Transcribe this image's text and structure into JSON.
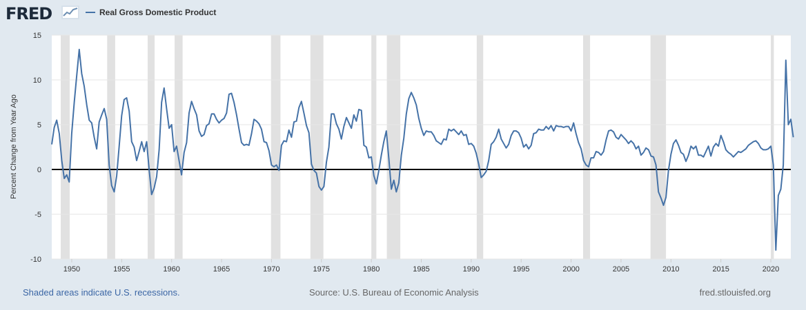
{
  "header": {
    "logo_text": "FRED",
    "logo_icon": "line-chart-icon",
    "legend_label": "Real Gross Domestic Product",
    "legend_color": "#4572a7"
  },
  "footer": {
    "left": "Shaded areas indicate U.S. recessions.",
    "center": "Source: U.S. Bureau of Economic Analysis",
    "right": "fred.stlouisfed.org"
  },
  "chart_data": {
    "type": "line",
    "ylabel": "Percent Change from Year Ago",
    "xlim": [
      1948.0,
      2022.0
    ],
    "ylim": [
      -10,
      15
    ],
    "yticks": [
      15,
      10,
      5,
      0,
      -5,
      -10
    ],
    "xticks": [
      1950,
      1955,
      1960,
      1965,
      1970,
      1975,
      1980,
      1985,
      1990,
      1995,
      2000,
      2005,
      2010,
      2015,
      2020
    ],
    "grid": true,
    "legend_position": "top-left",
    "recession_color": "#e1e1e1",
    "line_color": "#4572a7",
    "recessions": [
      [
        1948.9,
        1949.8
      ],
      [
        1953.55,
        1954.35
      ],
      [
        1957.6,
        1958.3
      ],
      [
        1960.3,
        1961.1
      ],
      [
        1969.95,
        1970.9
      ],
      [
        1973.9,
        1975.2
      ],
      [
        1980.0,
        1980.5
      ],
      [
        1981.55,
        1982.9
      ],
      [
        1990.55,
        1991.2
      ],
      [
        2001.2,
        2001.9
      ],
      [
        2007.95,
        2009.5
      ],
      [
        2020.0,
        2020.3
      ]
    ],
    "series": [
      {
        "points": [
          [
            1948.0,
            2.8
          ],
          [
            1948.25,
            4.7
          ],
          [
            1948.5,
            5.5
          ],
          [
            1948.75,
            4.0
          ],
          [
            1949.0,
            1.0
          ],
          [
            1949.25,
            -1.0
          ],
          [
            1949.5,
            -0.6
          ],
          [
            1949.75,
            -1.4
          ],
          [
            1950.0,
            4.0
          ],
          [
            1950.25,
            7.5
          ],
          [
            1950.5,
            10.5
          ],
          [
            1950.75,
            13.4
          ],
          [
            1951.0,
            10.7
          ],
          [
            1951.25,
            9.3
          ],
          [
            1951.5,
            7.2
          ],
          [
            1951.75,
            5.5
          ],
          [
            1952.0,
            5.2
          ],
          [
            1952.25,
            3.6
          ],
          [
            1952.5,
            2.3
          ],
          [
            1952.75,
            5.3
          ],
          [
            1953.0,
            6.1
          ],
          [
            1953.25,
            6.8
          ],
          [
            1953.5,
            5.6
          ],
          [
            1953.75,
            0.5
          ],
          [
            1954.0,
            -1.8
          ],
          [
            1954.25,
            -2.5
          ],
          [
            1954.5,
            -0.7
          ],
          [
            1954.75,
            2.6
          ],
          [
            1955.0,
            6.0
          ],
          [
            1955.25,
            7.8
          ],
          [
            1955.5,
            8.0
          ],
          [
            1955.75,
            6.5
          ],
          [
            1956.0,
            3.1
          ],
          [
            1956.25,
            2.5
          ],
          [
            1956.5,
            1.0
          ],
          [
            1956.75,
            2.0
          ],
          [
            1957.0,
            3.1
          ],
          [
            1957.25,
            2.0
          ],
          [
            1957.5,
            3.1
          ],
          [
            1957.75,
            0.0
          ],
          [
            1958.0,
            -2.8
          ],
          [
            1958.25,
            -2.1
          ],
          [
            1958.5,
            -0.8
          ],
          [
            1958.75,
            2.2
          ],
          [
            1959.0,
            7.5
          ],
          [
            1959.25,
            9.1
          ],
          [
            1959.5,
            6.8
          ],
          [
            1959.75,
            4.6
          ],
          [
            1960.0,
            5.0
          ],
          [
            1960.25,
            2.0
          ],
          [
            1960.5,
            2.6
          ],
          [
            1960.75,
            1.0
          ],
          [
            1961.0,
            -0.6
          ],
          [
            1961.25,
            1.9
          ],
          [
            1961.5,
            3.0
          ],
          [
            1961.75,
            6.3
          ],
          [
            1962.0,
            7.6
          ],
          [
            1962.25,
            6.8
          ],
          [
            1962.5,
            6.1
          ],
          [
            1962.75,
            4.3
          ],
          [
            1963.0,
            3.7
          ],
          [
            1963.25,
            3.9
          ],
          [
            1963.5,
            4.9
          ],
          [
            1963.75,
            5.1
          ],
          [
            1964.0,
            6.2
          ],
          [
            1964.25,
            6.2
          ],
          [
            1964.5,
            5.6
          ],
          [
            1964.75,
            5.2
          ],
          [
            1965.0,
            5.5
          ],
          [
            1965.25,
            5.7
          ],
          [
            1965.5,
            6.3
          ],
          [
            1965.75,
            8.4
          ],
          [
            1966.0,
            8.5
          ],
          [
            1966.25,
            7.5
          ],
          [
            1966.5,
            6.1
          ],
          [
            1966.75,
            4.5
          ],
          [
            1967.0,
            3.0
          ],
          [
            1967.25,
            2.7
          ],
          [
            1967.5,
            2.8
          ],
          [
            1967.75,
            2.7
          ],
          [
            1968.0,
            4.0
          ],
          [
            1968.25,
            5.6
          ],
          [
            1968.5,
            5.4
          ],
          [
            1968.75,
            5.1
          ],
          [
            1969.0,
            4.5
          ],
          [
            1969.25,
            3.1
          ],
          [
            1969.5,
            3.0
          ],
          [
            1969.75,
            2.1
          ],
          [
            1970.0,
            0.5
          ],
          [
            1970.25,
            0.3
          ],
          [
            1970.5,
            0.5
          ],
          [
            1970.75,
            -0.1
          ],
          [
            1971.0,
            2.7
          ],
          [
            1971.25,
            3.2
          ],
          [
            1971.5,
            3.1
          ],
          [
            1971.75,
            4.4
          ],
          [
            1972.0,
            3.6
          ],
          [
            1972.25,
            5.3
          ],
          [
            1972.5,
            5.4
          ],
          [
            1972.75,
            6.9
          ],
          [
            1973.0,
            7.6
          ],
          [
            1973.25,
            6.3
          ],
          [
            1973.5,
            4.9
          ],
          [
            1973.75,
            4.1
          ],
          [
            1974.0,
            0.6
          ],
          [
            1974.25,
            -0.1
          ],
          [
            1974.5,
            -0.4
          ],
          [
            1974.75,
            -1.9
          ],
          [
            1975.0,
            -2.3
          ],
          [
            1975.25,
            -1.9
          ],
          [
            1975.5,
            0.8
          ],
          [
            1975.75,
            2.5
          ],
          [
            1976.0,
            6.2
          ],
          [
            1976.25,
            6.2
          ],
          [
            1976.5,
            5.1
          ],
          [
            1976.75,
            4.5
          ],
          [
            1977.0,
            3.4
          ],
          [
            1977.25,
            4.8
          ],
          [
            1977.5,
            5.8
          ],
          [
            1977.75,
            5.2
          ],
          [
            1978.0,
            4.6
          ],
          [
            1978.25,
            6.1
          ],
          [
            1978.5,
            5.4
          ],
          [
            1978.75,
            6.7
          ],
          [
            1979.0,
            6.6
          ],
          [
            1979.25,
            2.7
          ],
          [
            1979.5,
            2.5
          ],
          [
            1979.75,
            1.3
          ],
          [
            1980.0,
            1.4
          ],
          [
            1980.25,
            -0.7
          ],
          [
            1980.5,
            -1.6
          ],
          [
            1980.75,
            -0.1
          ],
          [
            1981.0,
            1.6
          ],
          [
            1981.25,
            3.1
          ],
          [
            1981.5,
            4.3
          ],
          [
            1981.75,
            1.2
          ],
          [
            1982.0,
            -2.2
          ],
          [
            1982.25,
            -1.2
          ],
          [
            1982.5,
            -2.5
          ],
          [
            1982.75,
            -1.5
          ],
          [
            1983.0,
            1.6
          ],
          [
            1983.25,
            3.5
          ],
          [
            1983.5,
            6.2
          ],
          [
            1983.75,
            7.9
          ],
          [
            1984.0,
            8.6
          ],
          [
            1984.25,
            8.0
          ],
          [
            1984.5,
            7.2
          ],
          [
            1984.75,
            5.7
          ],
          [
            1985.0,
            4.6
          ],
          [
            1985.25,
            3.8
          ],
          [
            1985.5,
            4.3
          ],
          [
            1985.75,
            4.2
          ],
          [
            1986.0,
            4.2
          ],
          [
            1986.25,
            3.8
          ],
          [
            1986.5,
            3.2
          ],
          [
            1986.75,
            3.0
          ],
          [
            1987.0,
            2.8
          ],
          [
            1987.25,
            3.4
          ],
          [
            1987.5,
            3.3
          ],
          [
            1987.75,
            4.5
          ],
          [
            1988.0,
            4.3
          ],
          [
            1988.25,
            4.5
          ],
          [
            1988.5,
            4.2
          ],
          [
            1988.75,
            3.9
          ],
          [
            1989.0,
            4.3
          ],
          [
            1989.25,
            3.8
          ],
          [
            1989.5,
            3.9
          ],
          [
            1989.75,
            2.8
          ],
          [
            1990.0,
            2.9
          ],
          [
            1990.25,
            2.6
          ],
          [
            1990.5,
            1.8
          ],
          [
            1990.75,
            0.6
          ],
          [
            1991.0,
            -0.9
          ],
          [
            1991.25,
            -0.6
          ],
          [
            1991.5,
            -0.2
          ],
          [
            1991.75,
            1.0
          ],
          [
            1992.0,
            2.8
          ],
          [
            1992.25,
            3.1
          ],
          [
            1992.5,
            3.6
          ],
          [
            1992.75,
            4.5
          ],
          [
            1993.0,
            3.4
          ],
          [
            1993.25,
            2.9
          ],
          [
            1993.5,
            2.4
          ],
          [
            1993.75,
            2.8
          ],
          [
            1994.0,
            3.8
          ],
          [
            1994.25,
            4.3
          ],
          [
            1994.5,
            4.3
          ],
          [
            1994.75,
            4.1
          ],
          [
            1995.0,
            3.5
          ],
          [
            1995.25,
            2.5
          ],
          [
            1995.5,
            2.8
          ],
          [
            1995.75,
            2.3
          ],
          [
            1996.0,
            2.7
          ],
          [
            1996.25,
            4.0
          ],
          [
            1996.5,
            4.1
          ],
          [
            1996.75,
            4.5
          ],
          [
            1997.0,
            4.4
          ],
          [
            1997.25,
            4.4
          ],
          [
            1997.5,
            4.8
          ],
          [
            1997.75,
            4.5
          ],
          [
            1998.0,
            4.9
          ],
          [
            1998.25,
            4.3
          ],
          [
            1998.5,
            4.9
          ],
          [
            1998.75,
            4.8
          ],
          [
            1999.0,
            4.8
          ],
          [
            1999.25,
            4.7
          ],
          [
            1999.5,
            4.8
          ],
          [
            1999.75,
            4.8
          ],
          [
            2000.0,
            4.3
          ],
          [
            2000.25,
            5.2
          ],
          [
            2000.5,
            4.0
          ],
          [
            2000.75,
            3.0
          ],
          [
            2001.0,
            2.3
          ],
          [
            2001.25,
            1.0
          ],
          [
            2001.5,
            0.5
          ],
          [
            2001.75,
            0.3
          ],
          [
            2002.0,
            1.3
          ],
          [
            2002.25,
            1.3
          ],
          [
            2002.5,
            2.0
          ],
          [
            2002.75,
            1.9
          ],
          [
            2003.0,
            1.6
          ],
          [
            2003.25,
            2.0
          ],
          [
            2003.5,
            3.3
          ],
          [
            2003.75,
            4.3
          ],
          [
            2004.0,
            4.4
          ],
          [
            2004.25,
            4.2
          ],
          [
            2004.5,
            3.6
          ],
          [
            2004.75,
            3.4
          ],
          [
            2005.0,
            3.9
          ],
          [
            2005.25,
            3.6
          ],
          [
            2005.5,
            3.3
          ],
          [
            2005.75,
            2.9
          ],
          [
            2006.0,
            3.2
          ],
          [
            2006.25,
            2.9
          ],
          [
            2006.5,
            2.3
          ],
          [
            2006.75,
            2.6
          ],
          [
            2007.0,
            1.6
          ],
          [
            2007.25,
            1.9
          ],
          [
            2007.5,
            2.4
          ],
          [
            2007.75,
            2.2
          ],
          [
            2008.0,
            1.5
          ],
          [
            2008.25,
            1.4
          ],
          [
            2008.5,
            0.5
          ],
          [
            2008.75,
            -2.5
          ],
          [
            2009.0,
            -3.2
          ],
          [
            2009.25,
            -4.0
          ],
          [
            2009.5,
            -3.1
          ],
          [
            2009.75,
            -0.1
          ],
          [
            2010.0,
            1.7
          ],
          [
            2010.25,
            2.9
          ],
          [
            2010.5,
            3.3
          ],
          [
            2010.75,
            2.7
          ],
          [
            2011.0,
            1.9
          ],
          [
            2011.25,
            1.7
          ],
          [
            2011.5,
            0.9
          ],
          [
            2011.75,
            1.6
          ],
          [
            2012.0,
            2.6
          ],
          [
            2012.25,
            2.3
          ],
          [
            2012.5,
            2.6
          ],
          [
            2012.75,
            1.6
          ],
          [
            2013.0,
            1.6
          ],
          [
            2013.25,
            1.4
          ],
          [
            2013.5,
            2.0
          ],
          [
            2013.75,
            2.6
          ],
          [
            2014.0,
            1.5
          ],
          [
            2014.25,
            2.5
          ],
          [
            2014.5,
            2.9
          ],
          [
            2014.75,
            2.6
          ],
          [
            2015.0,
            3.8
          ],
          [
            2015.25,
            3.1
          ],
          [
            2015.5,
            2.2
          ],
          [
            2015.75,
            1.9
          ],
          [
            2016.0,
            1.7
          ],
          [
            2016.25,
            1.4
          ],
          [
            2016.5,
            1.7
          ],
          [
            2016.75,
            2.0
          ],
          [
            2017.0,
            1.9
          ],
          [
            2017.25,
            2.1
          ],
          [
            2017.5,
            2.3
          ],
          [
            2017.75,
            2.7
          ],
          [
            2018.0,
            2.9
          ],
          [
            2018.25,
            3.1
          ],
          [
            2018.5,
            3.2
          ],
          [
            2018.75,
            2.9
          ],
          [
            2019.0,
            2.4
          ],
          [
            2019.25,
            2.2
          ],
          [
            2019.5,
            2.2
          ],
          [
            2019.75,
            2.3
          ],
          [
            2020.0,
            2.6
          ],
          [
            2020.25,
            0.5
          ],
          [
            2020.5,
            -9.0
          ],
          [
            2020.75,
            -2.9
          ],
          [
            2021.0,
            -2.2
          ],
          [
            2021.25,
            0.5
          ],
          [
            2021.5,
            12.2
          ],
          [
            2021.75,
            5.0
          ],
          [
            2022.0,
            5.6
          ],
          [
            2022.25,
            3.6
          ]
        ]
      }
    ]
  }
}
